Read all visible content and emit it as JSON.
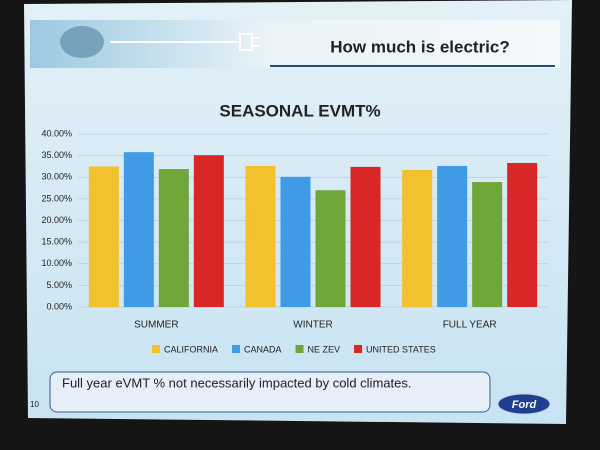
{
  "slide": {
    "header": "How much is electric?",
    "note": "Full year eVMT % not necessarily impacted by cold climates.",
    "page_number": "10",
    "logo": "Ford"
  },
  "chart_data": {
    "type": "bar",
    "title": "SEASONAL EVMT%",
    "categories": [
      "SUMMER",
      "WINTER",
      "FULL YEAR"
    ],
    "series": [
      {
        "name": "CALIFORNIA",
        "color": "#f2c12e",
        "values": [
          32.5,
          32.6,
          31.7
        ]
      },
      {
        "name": "CANADA",
        "color": "#3f9be6",
        "values": [
          35.8,
          30.1,
          32.6
        ]
      },
      {
        "name": "NE ZEV",
        "color": "#6fa63a",
        "values": [
          31.9,
          27.0,
          28.9
        ]
      },
      {
        "name": "UNITED STATES",
        "color": "#d92626",
        "values": [
          35.1,
          32.4,
          33.3
        ]
      }
    ],
    "ylim": [
      0,
      40
    ],
    "yticks": [
      {
        "value": 0,
        "label": "0.00%"
      },
      {
        "value": 5,
        "label": "5.00%"
      },
      {
        "value": 10,
        "label": "10.00%"
      },
      {
        "value": 15,
        "label": "15.00%"
      },
      {
        "value": 20,
        "label": "20.00%"
      },
      {
        "value": 25,
        "label": "25.00%"
      },
      {
        "value": 30,
        "label": "30.00%"
      },
      {
        "value": 35,
        "label": "35.00%"
      },
      {
        "value": 40,
        "label": "40.00%"
      }
    ],
    "grid": true,
    "legend": "bottom"
  }
}
